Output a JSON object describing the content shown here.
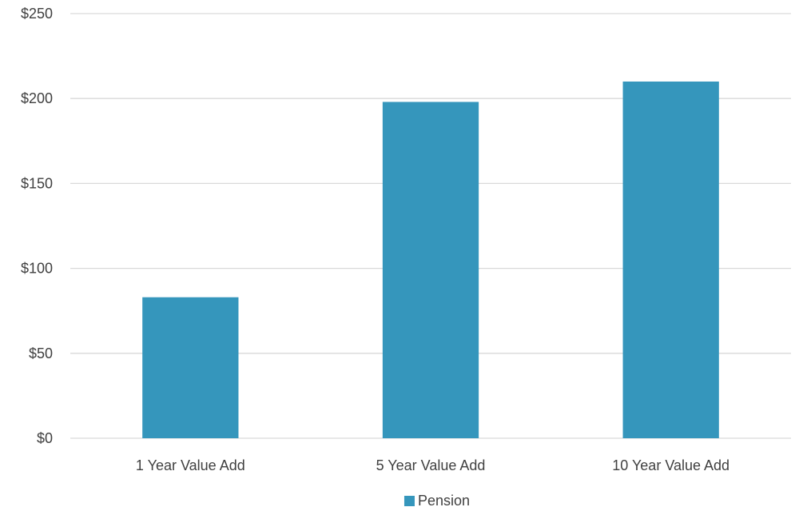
{
  "chart_data": {
    "type": "bar",
    "categories": [
      "1 Year Value Add",
      "5 Year Value Add",
      "10 Year Value Add"
    ],
    "series": [
      {
        "name": "Pension",
        "values": [
          83,
          198,
          210
        ],
        "color": "#3596BC"
      }
    ],
    "y_ticks": [
      "$0",
      "$50",
      "$100",
      "$150",
      "$200",
      "$250"
    ],
    "ylim": [
      0,
      250
    ],
    "grid": true,
    "legend_position": "bottom",
    "gridline_color": "#D9D9D9",
    "text_color": "#404040"
  }
}
